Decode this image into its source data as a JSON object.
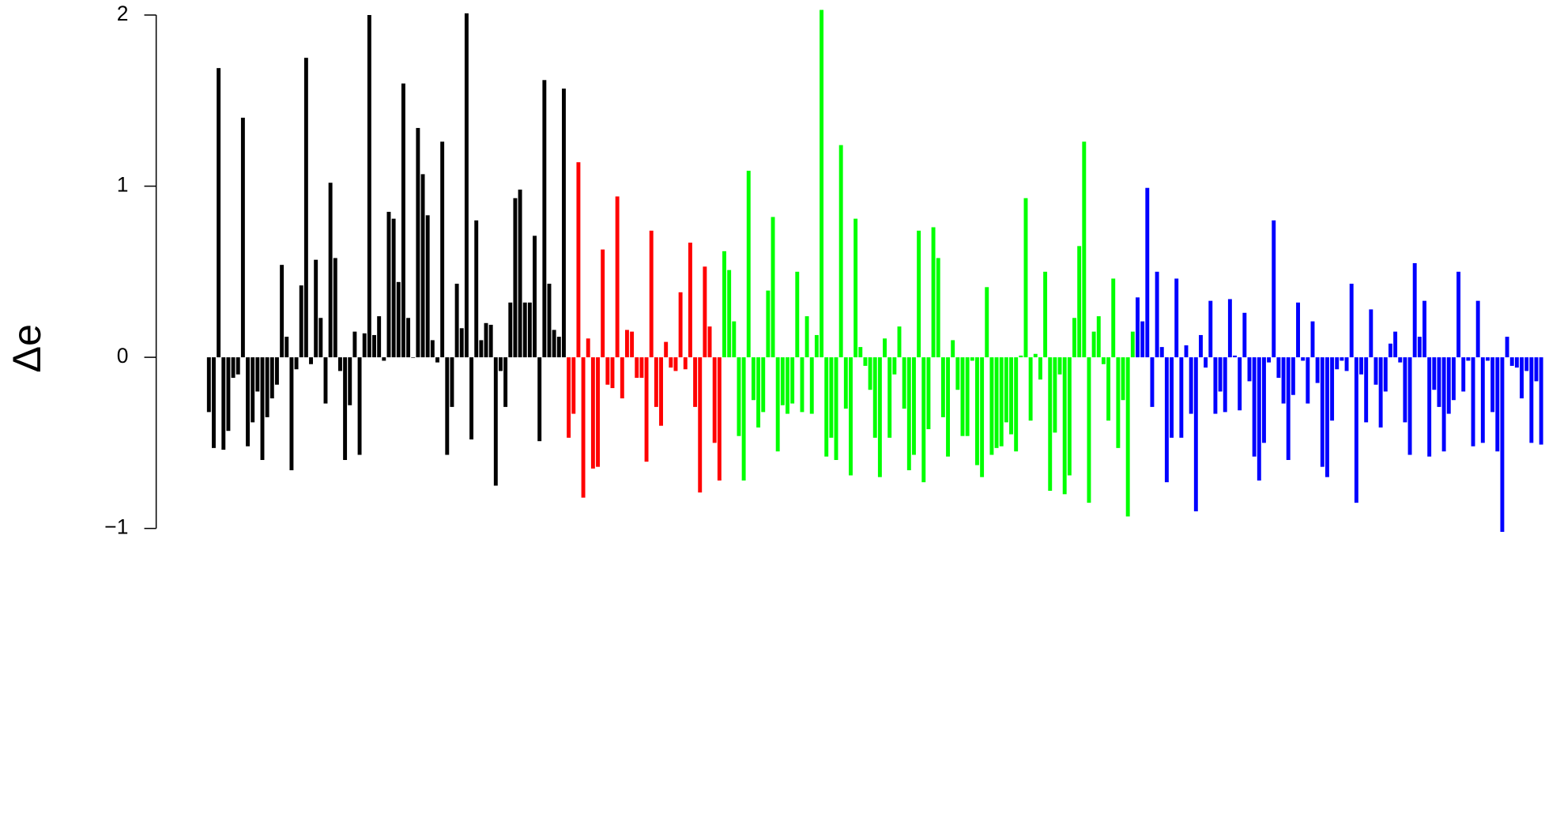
{
  "chart_data": {
    "type": "bar",
    "ylabel": "Δe",
    "ylim": [
      -1,
      2.05
    ],
    "yticks": [
      {
        "value": -1,
        "label": "−1"
      },
      0,
      1,
      2
    ],
    "series": [
      {
        "color": "#000000",
        "values": [
          -0.32,
          -0.53,
          1.69,
          -0.54,
          -0.43,
          -0.12,
          -0.1,
          1.4,
          -0.52,
          -0.38,
          -0.2,
          -0.6,
          -0.35,
          -0.24,
          -0.16,
          0.54,
          0.12,
          -0.66,
          -0.07,
          0.42,
          1.75,
          -0.04,
          0.57,
          0.23,
          -0.27,
          1.02,
          0.58,
          -0.08,
          -0.6,
          -0.28,
          0.15,
          -0.57,
          0.14,
          2.0,
          0.13,
          0.24,
          -0.02,
          0.85,
          0.81,
          0.44,
          1.6,
          0.23,
          0.0,
          1.34,
          1.07,
          0.83,
          0.1,
          -0.03,
          1.26,
          -0.57,
          -0.29,
          0.43,
          0.17,
          2.01,
          -0.48,
          0.8,
          0.1,
          0.2,
          0.19,
          -0.75,
          -0.08,
          -0.29,
          0.32,
          0.93,
          0.98,
          0.32,
          0.32,
          0.71,
          -0.49,
          1.62,
          0.43,
          0.16,
          0.12,
          1.57
        ]
      },
      {
        "color": "#ff0000",
        "values": [
          -0.47,
          -0.33,
          1.14,
          -0.82,
          0.11,
          -0.65,
          -0.64,
          0.63,
          -0.16,
          -0.18,
          0.94,
          -0.24,
          0.16,
          0.15,
          -0.12,
          -0.12,
          -0.61,
          0.74,
          -0.29,
          -0.4,
          0.09,
          -0.06,
          -0.08,
          0.38,
          -0.07,
          0.67,
          -0.29,
          -0.79,
          0.53,
          0.18,
          -0.5,
          -0.72
        ]
      },
      {
        "color": "#00ff00",
        "values": [
          0.62,
          0.51,
          0.21,
          -0.46,
          -0.72,
          1.09,
          -0.25,
          -0.41,
          -0.32,
          0.39,
          0.82,
          -0.55,
          -0.28,
          -0.33,
          -0.27,
          0.5,
          -0.32,
          0.24,
          -0.33,
          0.13,
          2.03,
          -0.58,
          -0.47,
          -0.6,
          1.24,
          -0.3,
          -0.69,
          0.81,
          0.06,
          -0.05,
          -0.19,
          -0.47,
          -0.7,
          0.11,
          -0.47,
          -0.1,
          0.18,
          -0.3,
          -0.66,
          -0.57,
          0.74,
          -0.73,
          -0.42,
          0.76,
          0.58,
          -0.35,
          -0.58,
          0.1,
          -0.19,
          -0.46,
          -0.46,
          -0.02,
          -0.63,
          -0.7,
          0.41,
          -0.57,
          -0.53,
          -0.52,
          -0.38,
          -0.45,
          -0.55,
          0.01,
          0.93,
          -0.37,
          0.02,
          -0.13,
          0.5,
          -0.78,
          -0.44,
          -0.1,
          -0.8,
          -0.69,
          0.23,
          0.65,
          1.26,
          -0.85,
          0.15,
          0.24,
          -0.04,
          -0.37,
          0.46,
          -0.53,
          -0.25,
          -0.93,
          0.15
        ]
      },
      {
        "color": "#0000ff",
        "values": [
          0.35,
          0.21,
          0.99,
          -0.29,
          0.5,
          0.06,
          -0.73,
          -0.47,
          0.46,
          -0.47,
          0.07,
          -0.33,
          -0.9,
          0.13,
          -0.06,
          0.33,
          -0.33,
          -0.2,
          -0.32,
          0.34,
          0.01,
          -0.31,
          0.26,
          -0.14,
          -0.58,
          -0.72,
          -0.5,
          -0.03,
          0.8,
          -0.12,
          -0.27,
          -0.6,
          -0.22,
          0.32,
          -0.02,
          -0.27,
          0.21,
          -0.15,
          -0.64,
          -0.7,
          -0.37,
          -0.07,
          -0.02,
          -0.08,
          0.43,
          -0.85,
          -0.1,
          -0.38,
          0.28,
          -0.16,
          -0.41,
          -0.2,
          0.08,
          0.15,
          -0.03,
          -0.38,
          -0.57,
          0.55,
          0.12,
          0.33,
          -0.58,
          -0.19,
          -0.29,
          -0.55,
          -0.33,
          -0.25,
          0.5,
          -0.2,
          -0.02,
          -0.52,
          0.33,
          -0.5,
          -0.02,
          -0.32,
          -0.55,
          -1.02,
          0.12,
          -0.05,
          -0.06,
          -0.24,
          -0.08,
          -0.5,
          -0.14,
          -0.51
        ]
      }
    ]
  }
}
